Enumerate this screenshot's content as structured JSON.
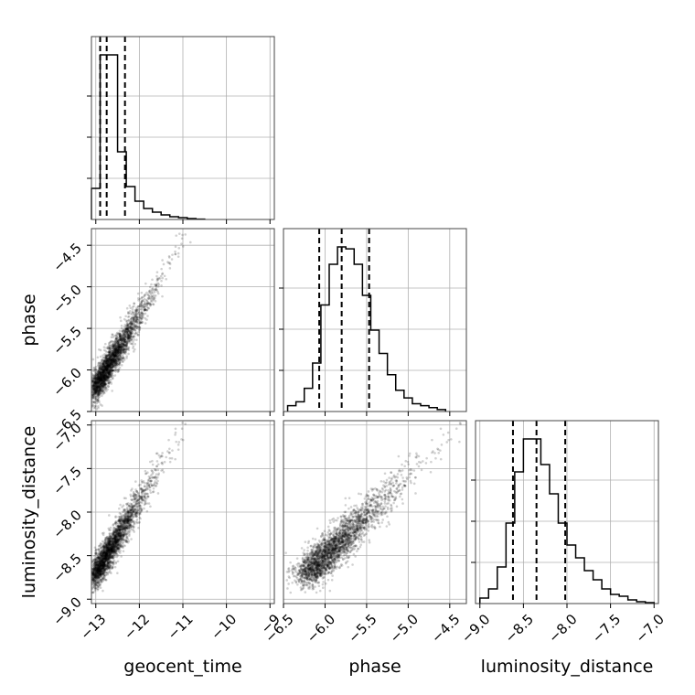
{
  "chart_data": {
    "type": "scatter",
    "title": "",
    "parameters": [
      {
        "name": "geocent_time",
        "label": "geocent_time",
        "range": [
          -13.1,
          -8.9
        ],
        "ticks": [
          -13,
          -12,
          -11,
          -10,
          -9
        ],
        "tick_labels": [
          "−13",
          "−12",
          "−11",
          "−10",
          "−9"
        ]
      },
      {
        "name": "phase",
        "label": "phase",
        "range": [
          -6.5,
          -4.3
        ],
        "ticks": [
          -6.5,
          -6.0,
          -5.5,
          -5.0,
          -4.5
        ],
        "tick_labels": [
          "−6.5",
          "−6.0",
          "−5.5",
          "−5.0",
          "−4.5"
        ]
      },
      {
        "name": "luminosity_distance",
        "label": "luminosity_distance",
        "range": [
          -9.05,
          -6.95
        ],
        "ticks": [
          -9.0,
          -8.5,
          -8.0,
          -7.5,
          -7.0
        ],
        "tick_labels": [
          "−9.0",
          "−8.5",
          "−8.0",
          "−7.5",
          "−7.0"
        ]
      }
    ],
    "quantiles": {
      "geocent_time": [
        -12.9,
        -12.75,
        -12.33
      ],
      "phase": [
        -6.07,
        -5.8,
        -5.47
      ],
      "luminosity_distance": [
        -8.62,
        -8.35,
        -8.02
      ]
    },
    "histograms": {
      "geocent_time": {
        "edges": [
          -13.1,
          -12.9,
          -12.7,
          -12.5,
          -12.3,
          -12.1,
          -11.9,
          -11.7,
          -11.5,
          -11.3,
          -11.1,
          -10.9,
          -10.7,
          -10.5
        ],
        "counts": [
          0.17,
          0.9,
          0.9,
          0.37,
          0.18,
          0.1,
          0.06,
          0.04,
          0.025,
          0.015,
          0.01,
          0.005,
          0.002
        ]
      },
      "phase": {
        "edges": [
          -6.45,
          -6.35,
          -6.25,
          -6.15,
          -6.05,
          -5.95,
          -5.85,
          -5.75,
          -5.65,
          -5.55,
          -5.45,
          -5.35,
          -5.25,
          -5.15,
          -5.05,
          -4.95,
          -4.85,
          -4.75,
          -4.65,
          -4.55
        ],
        "counts": [
          0.03,
          0.05,
          0.12,
          0.25,
          0.55,
          0.76,
          0.85,
          0.84,
          0.76,
          0.6,
          0.42,
          0.3,
          0.19,
          0.11,
          0.07,
          0.04,
          0.03,
          0.02,
          0.01
        ]
      },
      "luminosity_distance": {
        "edges": [
          -9.0,
          -8.9,
          -8.8,
          -8.7,
          -8.6,
          -8.5,
          -8.4,
          -8.3,
          -8.2,
          -8.1,
          -8.0,
          -7.9,
          -7.8,
          -7.7,
          -7.6,
          -7.5,
          -7.4,
          -7.3,
          -7.2,
          -7.1,
          -7.0
        ],
        "counts": [
          0.03,
          0.08,
          0.2,
          0.44,
          0.72,
          0.9,
          0.9,
          0.76,
          0.6,
          0.44,
          0.32,
          0.25,
          0.18,
          0.13,
          0.08,
          0.05,
          0.04,
          0.02,
          0.01,
          0.005
        ]
      }
    },
    "correlation": {
      "geocent_time|phase": 0.92,
      "geocent_time|luminosity_distance": 0.92,
      "phase|luminosity_distance": 0.92
    },
    "grid": true,
    "legend": "none"
  }
}
